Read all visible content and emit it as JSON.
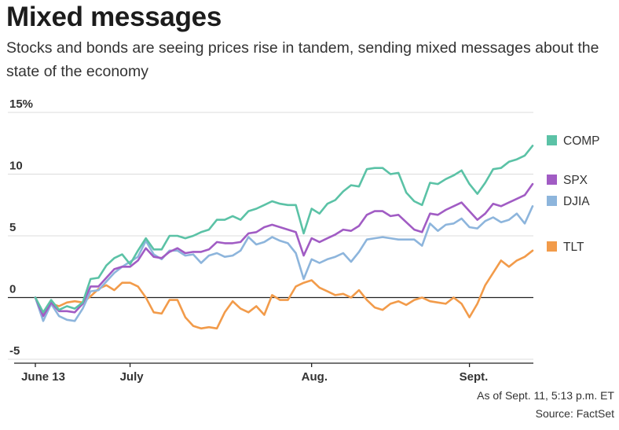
{
  "header": {
    "title": "Mixed messages",
    "subtitle": "Stocks and bonds are seeing prices rise in tandem, sending mixed messages about the state of the economy"
  },
  "footer": {
    "note": "As of Sept. 11, 5:13 p.m. ET",
    "source": "Source: FactSet"
  },
  "chart_data": {
    "type": "line",
    "title": "Mixed messages",
    "ylim": [
      -5,
      15
    ],
    "y_ticks": [
      -5,
      0,
      5,
      10,
      15
    ],
    "y_tick_labels": [
      "-5",
      "0",
      "5",
      "10",
      "15%"
    ],
    "x_ticks": [
      {
        "label": "June 13",
        "index": 0
      },
      {
        "label": "July",
        "index": 12
      },
      {
        "label": "Aug.",
        "index": 35
      },
      {
        "label": "Sept.",
        "index": 55
      }
    ],
    "grid": true,
    "legend_position": "right",
    "series": [
      {
        "name": "COMP",
        "color": "#5bc2a6",
        "values": [
          0.0,
          -1.2,
          -0.2,
          -1.0,
          -0.7,
          -0.9,
          -0.4,
          1.5,
          1.6,
          2.6,
          3.2,
          3.5,
          2.7,
          3.8,
          4.8,
          3.9,
          3.9,
          5.0,
          5.0,
          4.8,
          5.0,
          5.3,
          5.5,
          6.3,
          6.3,
          6.6,
          6.3,
          7.0,
          7.2,
          7.5,
          7.8,
          7.6,
          7.5,
          7.5,
          5.2,
          7.2,
          6.8,
          7.6,
          7.9,
          8.6,
          9.1,
          9.0,
          10.4,
          10.5,
          10.5,
          10.0,
          10.1,
          8.5,
          7.8,
          7.5,
          9.3,
          9.2,
          9.6,
          9.9,
          10.3,
          9.2,
          8.4,
          9.3,
          10.4,
          10.5,
          11.0,
          11.2,
          11.5,
          12.3
        ]
      },
      {
        "name": "SPX",
        "color": "#a15cc4",
        "values": [
          0.0,
          -1.5,
          -0.4,
          -1.1,
          -1.1,
          -1.2,
          -0.5,
          0.9,
          0.9,
          1.6,
          2.3,
          2.5,
          2.5,
          3.0,
          4.0,
          3.3,
          3.2,
          3.7,
          4.0,
          3.6,
          3.7,
          3.7,
          3.9,
          4.5,
          4.4,
          4.4,
          4.5,
          5.2,
          5.3,
          5.7,
          5.9,
          5.7,
          5.5,
          5.3,
          3.4,
          4.8,
          4.5,
          4.8,
          5.1,
          5.5,
          5.4,
          5.8,
          6.7,
          7.0,
          7.0,
          6.6,
          6.7,
          6.1,
          5.5,
          5.3,
          6.8,
          6.7,
          7.1,
          7.4,
          7.7,
          7.0,
          6.3,
          6.8,
          7.6,
          7.4,
          7.7,
          8.0,
          8.3,
          9.2
        ]
      },
      {
        "name": "DJIA",
        "color": "#8db5dc",
        "values": [
          0.0,
          -1.9,
          -0.5,
          -1.5,
          -1.8,
          -1.9,
          -0.9,
          0.5,
          0.6,
          1.3,
          2.0,
          2.5,
          2.9,
          3.3,
          4.6,
          3.5,
          3.1,
          3.8,
          3.8,
          3.4,
          3.5,
          2.8,
          3.4,
          3.6,
          3.3,
          3.4,
          3.8,
          4.9,
          4.3,
          4.5,
          4.9,
          4.6,
          4.4,
          3.6,
          1.5,
          3.1,
          2.8,
          3.1,
          3.3,
          3.6,
          2.9,
          3.7,
          4.7,
          4.8,
          4.9,
          4.8,
          4.7,
          4.7,
          4.7,
          4.2,
          6.0,
          5.4,
          5.9,
          6.0,
          6.4,
          5.7,
          5.6,
          6.2,
          6.5,
          6.1,
          6.3,
          6.8,
          6.0,
          7.4
        ]
      },
      {
        "name": "TLT",
        "color": "#f29b4a",
        "values": [
          0.0,
          -1.3,
          -0.5,
          -0.7,
          -0.4,
          -0.3,
          -0.4,
          0.1,
          0.7,
          1.0,
          0.6,
          1.2,
          1.2,
          0.9,
          0.0,
          -1.2,
          -1.3,
          -0.2,
          -0.2,
          -1.6,
          -2.3,
          -2.5,
          -2.4,
          -2.5,
          -1.2,
          -0.3,
          -0.9,
          -1.2,
          -0.7,
          -1.4,
          0.2,
          -0.2,
          -0.2,
          0.9,
          1.2,
          1.4,
          0.8,
          0.5,
          0.2,
          0.3,
          0.0,
          0.6,
          -0.2,
          -0.8,
          -1.0,
          -0.5,
          -0.3,
          -0.6,
          -0.2,
          0.0,
          -0.3,
          -0.4,
          -0.5,
          0.0,
          -0.5,
          -1.6,
          -0.5,
          1.0,
          2.0,
          3.0,
          2.5,
          3.0,
          3.3,
          3.8
        ]
      }
    ]
  }
}
